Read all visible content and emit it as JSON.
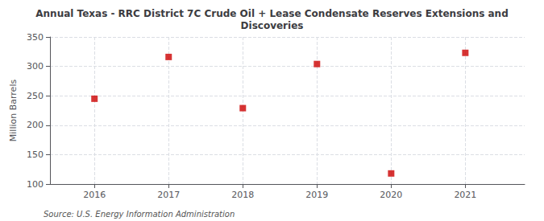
{
  "chart_data": {
    "type": "scatter",
    "title": "Annual Texas - RRC District 7C Crude Oil + Lease Condensate Reserves Extensions and\nDiscoveries",
    "ylabel": "Million Barrels",
    "annotations": [
      "Source: U.S. Energy Information Administration"
    ],
    "x": [
      2016,
      2017,
      2018,
      2019,
      2020,
      2021
    ],
    "values": [
      245,
      316,
      229,
      304,
      118,
      323
    ],
    "xlim": [
      2015.4,
      2021.8
    ],
    "xticks": [
      2016,
      2017,
      2018,
      2019,
      2020,
      2021
    ],
    "ylim": [
      100,
      350
    ],
    "yticks": [
      100,
      150,
      200,
      250,
      300,
      350
    ],
    "color": "#cc0000",
    "marker": "square",
    "grid": true
  }
}
